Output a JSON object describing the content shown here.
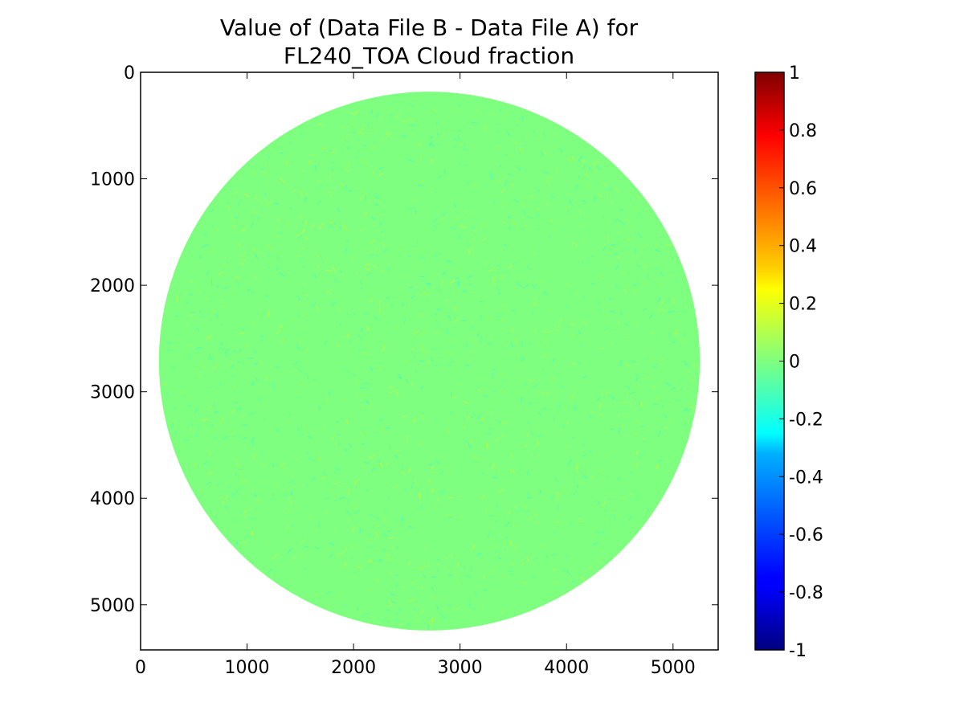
{
  "chart_data": {
    "type": "heatmap",
    "title_lines": [
      "Value of (Data File B - Data File A) for",
      "FL240_TOA Cloud fraction"
    ],
    "xlabel": "",
    "ylabel": "",
    "xlim": [
      0,
      5424
    ],
    "ylim": [
      5424,
      0
    ],
    "x_ticks": [
      0,
      1000,
      2000,
      3000,
      4000,
      5000
    ],
    "x_tick_labels": [
      "0",
      "1000",
      "2000",
      "3000",
      "4000",
      "5000"
    ],
    "y_ticks": [
      0,
      1000,
      2000,
      3000,
      4000,
      5000
    ],
    "y_tick_labels": [
      "0",
      "1000",
      "2000",
      "3000",
      "4000",
      "5000"
    ],
    "disk": {
      "center_x": 2712,
      "center_y": 2712,
      "radius_x": 2540,
      "radius_y": 2530
    },
    "dominant_value": 0,
    "grid": false,
    "colorbar": {
      "colormap": "jet",
      "range": [
        -1,
        1
      ],
      "ticks": [
        1,
        0.8,
        0.6,
        0.4,
        0.2,
        0,
        -0.2,
        -0.4,
        -0.6,
        -0.8,
        -1
      ],
      "tick_labels": [
        "1",
        "0.8",
        "0.6",
        "0.4",
        "0.2",
        "0",
        "-0.2",
        "-0.4",
        "-0.6",
        "-0.8",
        "-1"
      ]
    }
  },
  "colors": {
    "zero_value": "#7fff7f",
    "jet_stops": [
      "#000080",
      "#0000ff",
      "#00ffff",
      "#7fff7f",
      "#ffff00",
      "#ff0000",
      "#800000"
    ]
  }
}
